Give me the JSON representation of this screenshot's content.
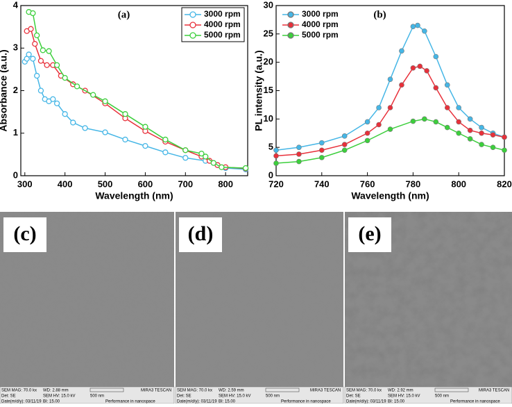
{
  "chart_data": [
    {
      "type": "line",
      "title": "(a)",
      "x_label": "Wavelength (nm)",
      "y_label": "Absorbance (a.u.)",
      "xlim": [
        290,
        855
      ],
      "ylim": [
        0,
        4
      ],
      "xticks": [
        300,
        400,
        500,
        600,
        700,
        800
      ],
      "yticks": [
        0,
        1,
        2,
        3,
        4
      ],
      "legend": "upper right",
      "marker_fill": false,
      "series": [
        {
          "name": "3000 rpm",
          "color": "#45b6e6",
          "x": [
            300,
            305,
            310,
            320,
            330,
            340,
            350,
            360,
            370,
            380,
            400,
            420,
            450,
            500,
            550,
            600,
            650,
            700,
            750,
            770,
            780,
            800,
            850
          ],
          "values": [
            2.68,
            2.75,
            2.85,
            2.75,
            2.35,
            2.0,
            1.8,
            1.75,
            1.8,
            1.7,
            1.45,
            1.25,
            1.12,
            1.02,
            0.85,
            0.7,
            0.55,
            0.42,
            0.35,
            0.3,
            0.25,
            0.18,
            0.15
          ]
        },
        {
          "name": "4000 rpm",
          "color": "#e8303a",
          "x": [
            305,
            315,
            325,
            340,
            355,
            370,
            390,
            420,
            450,
            500,
            550,
            600,
            650,
            700,
            740,
            760,
            780,
            800,
            850
          ],
          "values": [
            3.4,
            3.45,
            3.1,
            2.7,
            2.6,
            2.6,
            2.35,
            2.15,
            2.0,
            1.7,
            1.35,
            1.05,
            0.8,
            0.6,
            0.45,
            0.35,
            0.25,
            0.2,
            0.17
          ]
        },
        {
          "name": "5000 rpm",
          "color": "#3ccf3c",
          "x": [
            310,
            320,
            330,
            345,
            360,
            380,
            400,
            430,
            470,
            500,
            550,
            600,
            650,
            700,
            740,
            750,
            770,
            790,
            850
          ],
          "values": [
            3.85,
            3.82,
            3.3,
            2.95,
            2.93,
            2.6,
            2.3,
            2.1,
            1.9,
            1.75,
            1.45,
            1.15,
            0.85,
            0.6,
            0.52,
            0.45,
            0.3,
            0.2,
            0.18
          ]
        }
      ]
    },
    {
      "type": "line",
      "title": "(b)",
      "x_label": "Wavelength (nm)",
      "y_label": "PL intensity (a.u.)",
      "xlim": [
        720,
        820
      ],
      "ylim": [
        0,
        30
      ],
      "xticks": [
        720,
        740,
        760,
        780,
        800,
        820
      ],
      "yticks": [
        0,
        5,
        10,
        15,
        20,
        25,
        30
      ],
      "legend": "upper left",
      "marker_fill": true,
      "series": [
        {
          "name": "3000 rpm",
          "color": "#45b6e6",
          "x": [
            720,
            730,
            740,
            750,
            760,
            765,
            770,
            775,
            780,
            782,
            785,
            790,
            795,
            800,
            805,
            810,
            815,
            820
          ],
          "values": [
            4.5,
            5,
            5.8,
            7,
            9.5,
            12,
            17,
            22,
            26.3,
            26.5,
            25.5,
            21,
            16,
            12,
            10,
            8.5,
            7.5,
            6.8
          ]
        },
        {
          "name": "4000 rpm",
          "color": "#e8303a",
          "x": [
            720,
            730,
            740,
            750,
            760,
            765,
            770,
            775,
            780,
            783,
            786,
            790,
            795,
            800,
            805,
            810,
            815,
            820
          ],
          "values": [
            3.5,
            3.8,
            4.5,
            5.5,
            7.5,
            9,
            12,
            16,
            19,
            19.3,
            18.5,
            15.5,
            12,
            9.5,
            8,
            7.5,
            7.2,
            6.8
          ]
        },
        {
          "name": "5000 rpm",
          "color": "#3ccf3c",
          "x": [
            720,
            730,
            740,
            750,
            760,
            770,
            780,
            785,
            790,
            795,
            800,
            805,
            810,
            815,
            820
          ],
          "values": [
            2.2,
            2.5,
            3.2,
            4.5,
            6.2,
            8.2,
            9.6,
            10,
            9.5,
            8.5,
            7.5,
            6.5,
            5.5,
            5,
            4.5
          ]
        }
      ]
    }
  ],
  "sem_panels": [
    {
      "label": "(c)",
      "info": [
        [
          "SEM MAG: 70.0 kx",
          "WD: 2.88 mm",
          "MIRA3 TESCAN"
        ],
        [
          "Det: SE",
          "SEM HV: 15.0 kV",
          "500 nm"
        ],
        [
          "Date(m/d/y): 03/11/19",
          "BI: 15.00",
          "Performance in nanospace"
        ]
      ]
    },
    {
      "label": "(d)",
      "info": [
        [
          "SEM MAG: 70.0 kx",
          "WD: 2.59 mm",
          "MIRA3 TESCAN"
        ],
        [
          "Det: SE",
          "SEM HV: 15.0 kV",
          "500 nm"
        ],
        [
          "Date(m/d/y): 03/11/19",
          "BI: 15.00",
          "Performance in nanospace"
        ]
      ]
    },
    {
      "label": "(e)",
      "info": [
        [
          "SEM MAG: 70.0 kx",
          "WD: 2.92 mm",
          "MIRA3 TESCAN"
        ],
        [
          "Det: SE",
          "SEM HV: 15.0 kV",
          "500 nm"
        ],
        [
          "Date(m/d/y): 03/11/19",
          "BI: 15.00",
          "Performance in nanospace"
        ]
      ]
    }
  ]
}
